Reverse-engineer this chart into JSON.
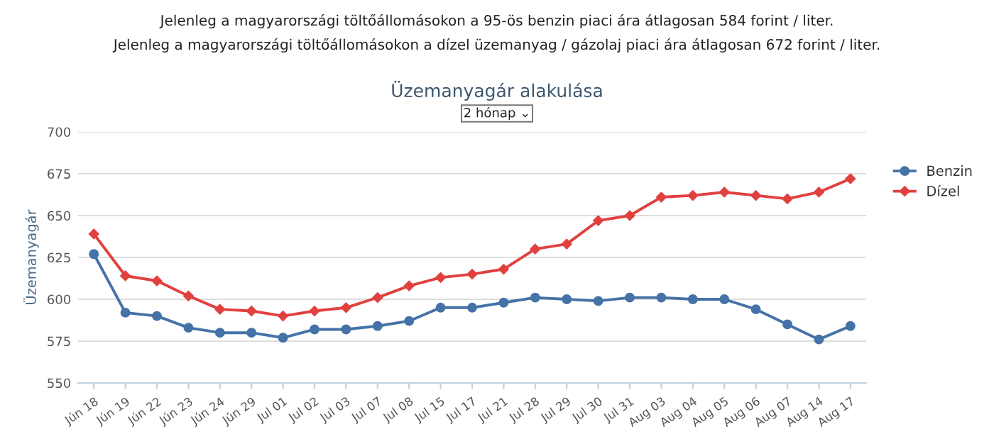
{
  "chart_data": {
    "type": "line",
    "title": "Üzemanyagár alakulása",
    "ylabel": "Üzemanyagár",
    "annotations": [
      "Jelenleg a magyarországi töltőállomásokon a 95-ös benzin piaci ára átlagosan 584 forint / liter.",
      "Jelenleg a magyarországi töltőállomásokon a dízel üzemanyag / gázolaj piaci ára átlagosan 672 forint / liter.",
      "2 hónap ⌄"
    ],
    "categories": [
      "Jún 18",
      "Jún 19",
      "Jún 22",
      "Jún 23",
      "Jún 24",
      "Jún 29",
      "Jul 01",
      "Jul 02",
      "Jul 03",
      "Jul 07",
      "Jul 08",
      "Jul 15",
      "Jul 17",
      "Jul 21",
      "Jul 28",
      "Jul 29",
      "Jul 30",
      "Jul 31",
      "Aug 03",
      "Aug 04",
      "Aug 05",
      "Aug 06",
      "Aug 07",
      "Aug 14",
      "Aug 17"
    ],
    "series": [
      {
        "name": "Benzin",
        "color": "#4572a7",
        "marker": "circle",
        "values": [
          627,
          592,
          590,
          583,
          580,
          580,
          577,
          582,
          582,
          584,
          587,
          595,
          595,
          598,
          601,
          600,
          599,
          601,
          601,
          600,
          600,
          594,
          585,
          576,
          584
        ]
      },
      {
        "name": "Dízel",
        "color": "#e0413f",
        "marker": "diamond",
        "values": [
          639,
          614,
          611,
          602,
          594,
          593,
          590,
          593,
          595,
          601,
          608,
          613,
          615,
          618,
          630,
          633,
          647,
          650,
          661,
          662,
          664,
          662,
          660,
          664,
          672
        ]
      }
    ],
    "ylim": [
      550,
      700
    ],
    "yticks": [
      550,
      575,
      600,
      625,
      650,
      675,
      700
    ],
    "grid": "y",
    "legend": "right",
    "line_style": "solid"
  }
}
